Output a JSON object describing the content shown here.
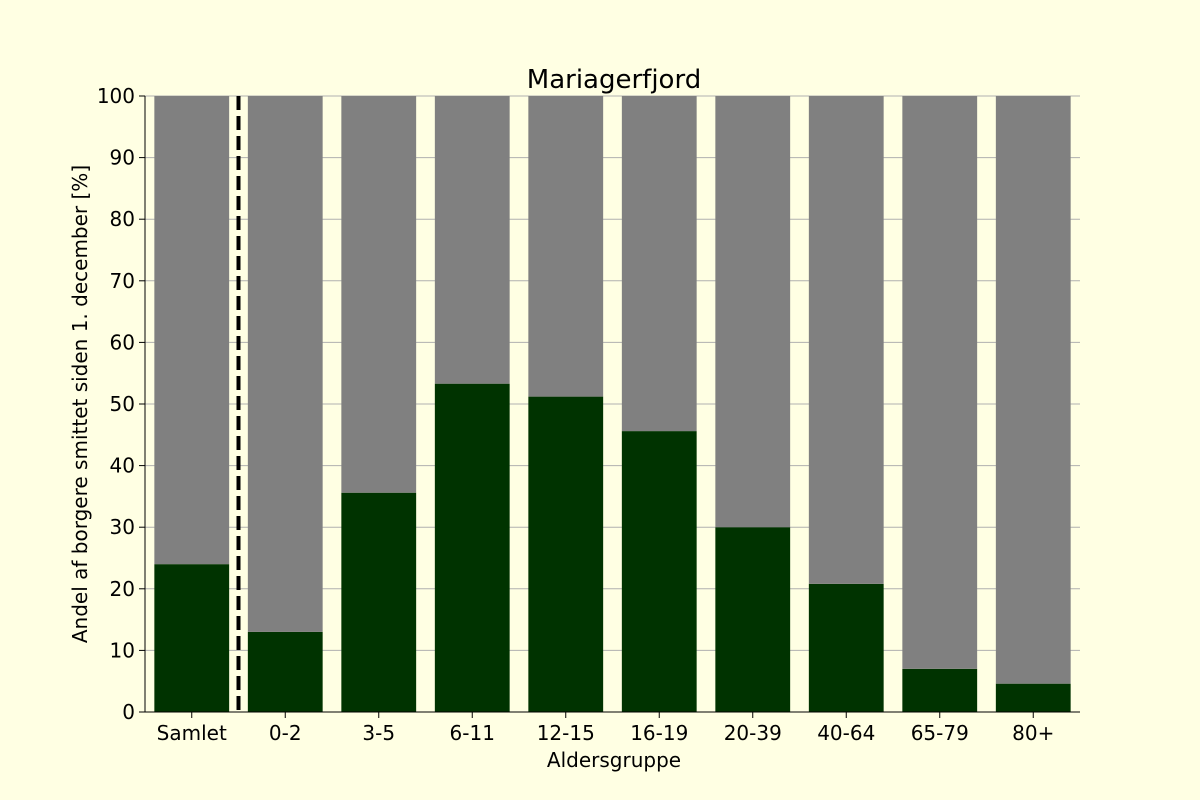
{
  "chart_data": {
    "type": "bar",
    "stacked": true,
    "title": "Mariagerfjord",
    "xlabel": "Aldersgruppe",
    "ylabel": "Andel af borgere smittet siden 1. december [%]",
    "categories": [
      "Samlet",
      "0-2",
      "3-5",
      "6-11",
      "12-15",
      "16-19",
      "20-39",
      "40-64",
      "65-79",
      "80+"
    ],
    "series": [
      {
        "values": [
          24.0,
          13.0,
          35.6,
          53.3,
          51.2,
          45.6,
          30.0,
          20.8,
          7.0,
          4.6
        ]
      },
      {
        "values": [
          76.0,
          87.0,
          64.4,
          46.7,
          48.8,
          54.4,
          70.0,
          79.2,
          93.0,
          95.4
        ]
      }
    ],
    "ylim": [
      0,
      100
    ],
    "yticks": [
      0,
      10,
      20,
      30,
      40,
      50,
      60,
      70,
      80,
      90,
      100
    ],
    "grid": "horizontal",
    "separator_after_category": "Samlet",
    "colors": {
      "infected": "#003300",
      "rest": "#808080",
      "grid": "#b0b0b0",
      "background": "#ffffe3",
      "separator": "#000000"
    }
  }
}
